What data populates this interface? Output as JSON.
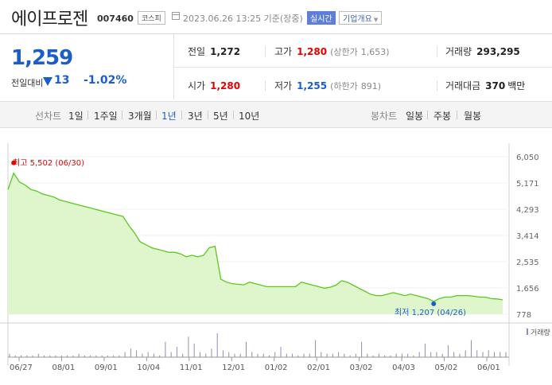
{
  "header": {
    "company": "에이프로젠",
    "code": "007460",
    "market": "코스피",
    "date": "2023.06.26 13:25 기준(장중)",
    "realtime_label": "실시간",
    "overview_label": "기업개요"
  },
  "quote": {
    "price": "1,259",
    "diff_label": "전일대비",
    "diff_value": "13",
    "diff_rate": "-1.02%",
    "colors": {
      "up": "#e60000",
      "down": "#1a5fc8"
    },
    "prev_close": {
      "label": "전일",
      "value": "1,272"
    },
    "high": {
      "label": "고가",
      "value": "1,280",
      "limit_label": "(상한가",
      "limit_value": "1,653)"
    },
    "volume": {
      "label": "거래량",
      "value": "293,295"
    },
    "open": {
      "label": "시가",
      "value": "1,280"
    },
    "low": {
      "label": "저가",
      "value": "1,255",
      "limit_label": "(하한가",
      "limit_value": "891)"
    },
    "amount": {
      "label": "거래대금",
      "value": "370",
      "unit": "백만"
    }
  },
  "tabs": {
    "line_label": "선차트",
    "line_tabs": [
      "1일",
      "1주일",
      "3개월",
      "1년",
      "3년",
      "5년",
      "10년"
    ],
    "active": "1년",
    "candle_label": "봉차트",
    "candle_tabs": [
      "일봉",
      "주봉",
      "월봉"
    ]
  },
  "chart_data": {
    "type": "area",
    "y_ticks": [
      "6,050",
      "5,171",
      "4,293",
      "3,414",
      "2,535",
      "1,656",
      "778"
    ],
    "ylim": [
      778,
      6050
    ],
    "x_labels": [
      "06/27",
      "08/01",
      "09/01",
      "10/04",
      "11/01",
      "12/01",
      "01/02",
      "02/01",
      "03/02",
      "04/03",
      "05/02",
      "06/01"
    ],
    "high_label": "최고 5,502 (06/30)",
    "low_label": "최저 1,207 (04/26)",
    "volume_legend": "거래량",
    "line_color": "#5cc81e",
    "fill_color": "#dff5cc",
    "marker_high_color": "#e60000",
    "marker_low_color": "#1a5fc8",
    "series": [
      {
        "values": [
          4950,
          5502,
          5200,
          5100,
          4950,
          4900,
          4800,
          4750,
          4700,
          4600,
          4550,
          4500,
          4450,
          4400,
          4350,
          4300,
          4250,
          4200,
          4150,
          4100,
          4050,
          3750,
          3500,
          3200,
          3100,
          3000,
          2950,
          2900,
          2850,
          2850,
          2800,
          2700,
          2750,
          2700,
          2750,
          3000,
          3050,
          1950,
          1850,
          1800,
          1780,
          1760,
          1850,
          1800,
          1750,
          1700,
          1700,
          1700,
          1700,
          1700,
          1700,
          1850,
          1800,
          1750,
          1700,
          1650,
          1680,
          1750,
          1900,
          1850,
          1750,
          1650,
          1550,
          1450,
          1400,
          1400,
          1450,
          1500,
          1450,
          1400,
          1450,
          1400,
          1350,
          1300,
          1207,
          1300,
          1350,
          1350,
          1400,
          1400,
          1400,
          1380,
          1350,
          1350,
          1300,
          1290,
          1259
        ]
      }
    ],
    "volume": [
      2,
      1,
      1,
      1,
      1,
      2,
      1,
      1,
      1,
      1,
      1,
      1,
      2,
      1,
      1,
      1,
      1,
      1,
      1,
      1,
      3,
      5,
      4,
      2,
      3,
      2,
      1,
      9,
      3,
      6,
      2,
      12,
      8,
      3,
      2,
      5,
      14,
      4,
      3,
      2,
      2,
      9,
      3,
      2,
      2,
      1,
      3,
      6,
      2,
      2,
      1,
      2,
      2,
      10,
      3,
      2,
      2,
      3,
      2,
      1,
      2,
      9,
      2,
      1,
      2,
      1,
      1,
      2,
      2,
      2,
      1,
      3,
      8,
      3,
      3,
      2,
      7,
      3,
      2,
      4,
      10,
      4,
      3,
      4,
      3,
      3,
      3
    ]
  }
}
